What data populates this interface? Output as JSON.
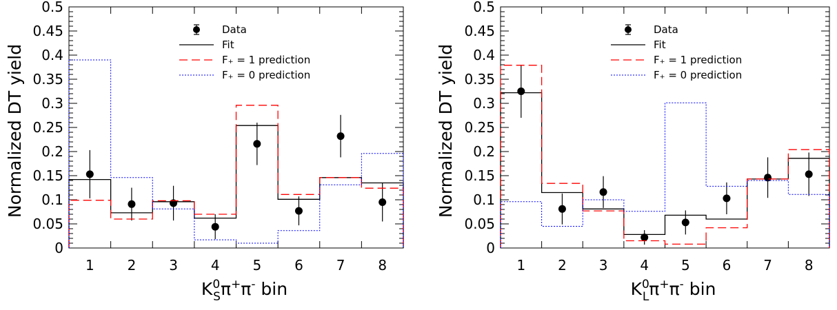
{
  "chart_data": [
    {
      "type": "bar",
      "categories": [
        "1",
        "2",
        "3",
        "4",
        "5",
        "6",
        "7",
        "8"
      ],
      "ylabel": "Normalized DT yield",
      "xlabel": "K_S^0 π^+ π^- bin",
      "xlabel_parts": {
        "base": "K",
        "sub": "S",
        "sup": "0",
        "rest": "π",
        "pi_plus": "+",
        "pi_minus": "-",
        "suffix": " bin"
      },
      "ylim": [
        0,
        0.5
      ],
      "yticks": [
        "0",
        "0.05",
        "0.1",
        "0.15",
        "0.2",
        "0.25",
        "0.3",
        "0.35",
        "0.4",
        "0.45",
        "0.5"
      ],
      "legend_position": "top-center",
      "series": [
        {
          "name": "Data",
          "kind": "points",
          "color": "#000000",
          "values": [
            0.153,
            0.091,
            0.093,
            0.044,
            0.216,
            0.077,
            0.232,
            0.095
          ],
          "errors": [
            0.05,
            0.034,
            0.036,
            0.026,
            0.044,
            0.03,
            0.044,
            0.04
          ]
        },
        {
          "name": "Fit",
          "kind": "step",
          "color": "#000000",
          "dash": "",
          "values": [
            0.142,
            0.073,
            0.096,
            0.062,
            0.254,
            0.101,
            0.146,
            0.135
          ]
        },
        {
          "name": "F₊ = 1 prediction",
          "kind": "step",
          "color": "#ff0000",
          "dash": "12,6",
          "values": [
            0.099,
            0.06,
            0.098,
            0.07,
            0.296,
            0.111,
            0.146,
            0.124
          ]
        },
        {
          "name": "F₊ = 0 prediction",
          "kind": "step",
          "color": "#0000ff",
          "dash": "2,2",
          "values": [
            0.39,
            0.146,
            0.081,
            0.017,
            0.01,
            0.036,
            0.131,
            0.196
          ]
        }
      ]
    },
    {
      "type": "bar",
      "categories": [
        "1",
        "2",
        "3",
        "4",
        "5",
        "6",
        "7",
        "8"
      ],
      "ylabel": "Normalized DT yield",
      "xlabel": "K_L^0 π^+ π^- bin",
      "xlabel_parts": {
        "base": "K",
        "sub": "L",
        "sup": "0",
        "rest": "π",
        "pi_plus": "+",
        "pi_minus": "-",
        "suffix": " bin"
      },
      "ylim": [
        0,
        0.5
      ],
      "yticks": [
        "0",
        "0.05",
        "0.1",
        "0.15",
        "0.2",
        "0.25",
        "0.3",
        "0.35",
        "0.4",
        "0.45",
        "0.5"
      ],
      "legend_position": "top-center",
      "series": [
        {
          "name": "Data",
          "kind": "points",
          "color": "#000000",
          "values": [
            0.325,
            0.081,
            0.116,
            0.022,
            0.053,
            0.103,
            0.146,
            0.153
          ],
          "errors": [
            0.055,
            0.032,
            0.033,
            0.015,
            0.025,
            0.033,
            0.042,
            0.045
          ]
        },
        {
          "name": "Fit",
          "kind": "step",
          "color": "#000000",
          "dash": "",
          "values": [
            0.322,
            0.115,
            0.081,
            0.028,
            0.068,
            0.06,
            0.143,
            0.186
          ]
        },
        {
          "name": "F₊ = 1 prediction",
          "kind": "step",
          "color": "#ff0000",
          "dash": "12,6",
          "values": [
            0.379,
            0.134,
            0.077,
            0.015,
            0.008,
            0.042,
            0.143,
            0.204
          ]
        },
        {
          "name": "F₊ = 0 prediction",
          "kind": "step",
          "color": "#0000ff",
          "dash": "2,2",
          "values": [
            0.096,
            0.045,
            0.1,
            0.076,
            0.301,
            0.128,
            0.14,
            0.111
          ]
        }
      ]
    }
  ]
}
